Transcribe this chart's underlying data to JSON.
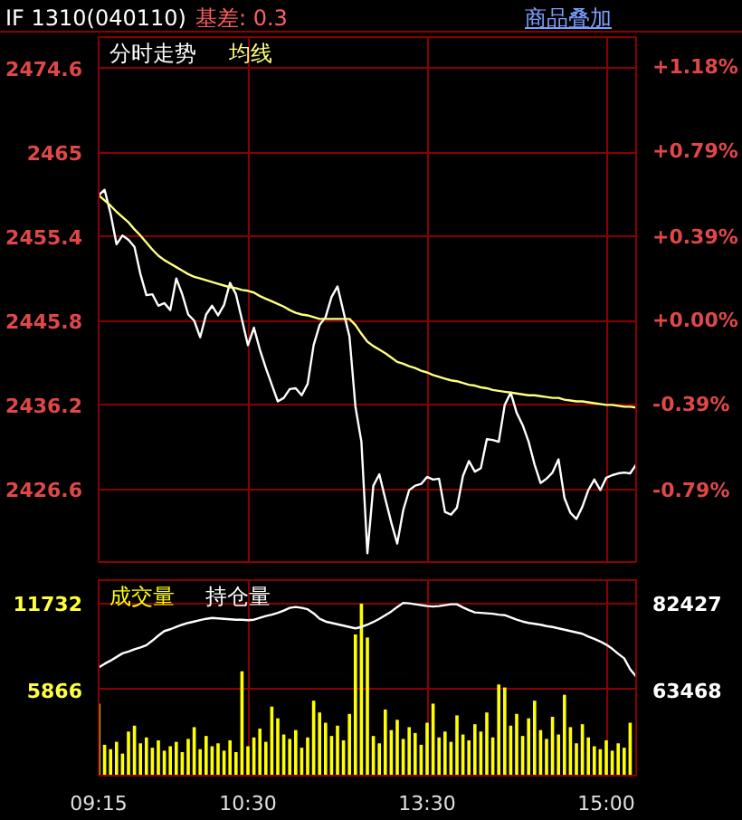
{
  "chart_data": [
    {
      "type": "line",
      "title": "IF 1310(040110)",
      "annotations": [
        "基差: 0.3",
        "商品叠加"
      ],
      "categories": [
        null,
        null,
        null,
        null,
        null,
        null,
        null,
        null,
        null,
        null,
        null,
        null,
        null,
        null,
        null,
        null,
        null,
        null,
        null,
        null,
        null,
        null,
        null,
        null,
        null,
        null,
        null,
        null,
        null,
        null,
        null,
        null,
        null,
        null,
        null,
        null,
        null,
        null,
        null,
        null,
        null,
        null,
        null,
        null,
        null,
        null,
        null,
        null,
        null,
        null,
        null,
        null,
        null,
        null,
        null,
        null,
        null,
        null,
        null,
        null,
        null,
        null,
        null,
        null,
        null,
        null,
        null,
        null,
        null,
        null,
        null,
        null,
        null,
        null,
        null,
        null,
        null,
        null,
        null,
        null,
        null,
        null,
        null,
        null,
        null,
        null,
        null,
        null,
        null,
        null,
        null
      ],
      "series": [
        {
          "name": "分时走势",
          "color": "#ffffff",
          "values": [
            2460.1,
            2460.7,
            2458.0,
            2454.5,
            2455.5,
            2455.0,
            2454.2,
            2451.1,
            2448.7,
            2448.8,
            2447.5,
            2447.8,
            2447.0,
            2450.6,
            2448.8,
            2446.5,
            2445.8,
            2443.9,
            2446.5,
            2447.5,
            2446.4,
            2447.6,
            2450.1,
            2448.8,
            2445.9,
            2443.0,
            2445.0,
            2442.5,
            2440.4,
            2438.5,
            2436.6,
            2437.0,
            2438.0,
            2438.1,
            2437.3,
            2438.6,
            2443.0,
            2445.3,
            2446.2,
            2448.5,
            2449.7,
            2446.8,
            2444.0,
            2436.0,
            2432.0,
            2419.3,
            2427.0,
            2428.3,
            2425.5,
            2422.8,
            2420.4,
            2424.2,
            2426.5,
            2427.0,
            2427.2,
            2428.0,
            2427.7,
            2427.8,
            2424.0,
            2423.7,
            2424.5,
            2428.1,
            2429.8,
            2428.6,
            2429.0,
            2432.3,
            2432.2,
            2432.0,
            2436.2,
            2437.6,
            2435.3,
            2433.9,
            2432.0,
            2429.4,
            2427.3,
            2427.8,
            2428.5,
            2430.0,
            2425.6,
            2423.9,
            2423.2,
            2424.6,
            2426.5,
            2427.7,
            2426.5,
            2427.9,
            2428.2,
            2428.4,
            2428.5,
            2428.4,
            2429.4
          ]
        },
        {
          "name": "均线",
          "color": "#ffff80",
          "values": [
            2460.1,
            2459.5,
            2458.9,
            2458.2,
            2457.6,
            2457.0,
            2456.2,
            2455.5,
            2454.7,
            2453.9,
            2453.2,
            2452.7,
            2452.3,
            2451.9,
            2451.5,
            2451.1,
            2450.8,
            2450.6,
            2450.4,
            2450.2,
            2450.0,
            2449.8,
            2449.6,
            2449.5,
            2449.3,
            2449.2,
            2449.0,
            2448.6,
            2448.3,
            2448.0,
            2447.7,
            2447.4,
            2447.0,
            2446.7,
            2446.5,
            2446.4,
            2446.2,
            2446.0,
            2446.0,
            2446.0,
            2446.0,
            2446.0,
            2446.0,
            2445.3,
            2444.3,
            2443.4,
            2442.9,
            2442.5,
            2442.1,
            2441.6,
            2441.1,
            2440.9,
            2440.6,
            2440.4,
            2440.1,
            2439.9,
            2439.6,
            2439.4,
            2439.2,
            2439.0,
            2438.9,
            2438.7,
            2438.5,
            2438.4,
            2438.2,
            2438.1,
            2437.9,
            2437.8,
            2437.7,
            2437.6,
            2437.5,
            2437.4,
            2437.3,
            2437.3,
            2437.2,
            2437.1,
            2437.0,
            2437.0,
            2436.8,
            2436.7,
            2436.6,
            2436.6,
            2436.5,
            2436.4,
            2436.3,
            2436.2,
            2436.2,
            2436.1,
            2436.0,
            2436.0,
            2435.9
          ]
        }
      ],
      "ylim": [
        2418.3,
        2478.1
      ],
      "yticks": [
        2426.6,
        2436.2,
        2445.8,
        2455.4,
        2465.0,
        2474.6
      ],
      "y2lim": [
        -1.124,
        1.321
      ],
      "y2ticks": [
        {
          "value": -0.79,
          "label": "-0.79%"
        },
        {
          "value": -0.39,
          "label": "-0.39%"
        },
        {
          "value": 0,
          "label": "+0.00%"
        },
        {
          "value": 0.39,
          "label": "+0.39%"
        },
        {
          "value": 0.79,
          "label": "+0.79%"
        },
        {
          "value": 1.18,
          "label": "+1.18%"
        }
      ],
      "grid": true,
      "legend": "top left",
      "tick_labels": "y"
    },
    {
      "type": "bar",
      "categories": [
        "09:15",
        null,
        null,
        null,
        null,
        null,
        null,
        null,
        null,
        null,
        null,
        null,
        null,
        null,
        null,
        null,
        null,
        null,
        null,
        null,
        null,
        null,
        null,
        null,
        null,
        "10:30",
        null,
        null,
        null,
        null,
        null,
        null,
        null,
        null,
        null,
        null,
        null,
        null,
        null,
        null,
        null,
        null,
        null,
        null,
        null,
        null,
        null,
        null,
        null,
        null,
        null,
        null,
        null,
        null,
        null,
        "13:30",
        null,
        null,
        null,
        null,
        null,
        null,
        null,
        null,
        null,
        null,
        null,
        null,
        null,
        null,
        null,
        null,
        null,
        null,
        null,
        null,
        null,
        null,
        null,
        null,
        null,
        null,
        null,
        null,
        null,
        "15:00",
        null,
        null,
        null,
        null,
        null
      ],
      "series": [
        {
          "name": "成交量",
          "color": "#ffff00",
          "values": [
            4900,
            2100,
            1800,
            2300,
            1500,
            3000,
            3400,
            2200,
            2600,
            1900,
            2400,
            1700,
            2000,
            2300,
            1600,
            2500,
            3300,
            1800,
            2700,
            2000,
            2200,
            1700,
            2400,
            1600,
            7100,
            2000,
            2600,
            3200,
            2300,
            4700,
            3900,
            2800,
            2500,
            3100,
            1900,
            2600,
            5100,
            4300,
            3600,
            2700,
            3400,
            2400,
            4200,
            9600,
            11700,
            9400,
            2700,
            2200,
            4500,
            3100,
            3800,
            2500,
            3300,
            2900,
            2100,
            3600,
            4900,
            2600,
            3000,
            2300,
            4100,
            2800,
            2400,
            3500,
            3000,
            4300,
            2600,
            6200,
            6000,
            3400,
            4200,
            2700,
            3900,
            5100,
            3100,
            2500,
            4000,
            2800,
            5500,
            3300,
            2200,
            3500,
            2600,
            2000,
            1800,
            2400,
            1700,
            2200,
            1900,
            3600,
            null
          ]
        },
        {
          "name": "持仓量",
          "type": "line",
          "axis": "y2",
          "color": "#ffffff",
          "values": [
            68300,
            69100,
            69800,
            70600,
            71400,
            71800,
            72300,
            72700,
            73200,
            74200,
            75300,
            76300,
            76700,
            77200,
            77700,
            78100,
            78400,
            78700,
            79000,
            79200,
            79100,
            79000,
            78900,
            78800,
            78800,
            78700,
            78800,
            79200,
            79600,
            79900,
            80300,
            80800,
            81400,
            81600,
            81400,
            81100,
            80200,
            79000,
            78400,
            78100,
            77800,
            77500,
            77200,
            76900,
            77200,
            77700,
            78300,
            79000,
            79800,
            80600,
            81600,
            82500,
            82400,
            82200,
            82000,
            81800,
            81700,
            81800,
            82000,
            82200,
            82200,
            81500,
            80900,
            80400,
            80300,
            80200,
            80100,
            79900,
            79800,
            79300,
            78800,
            78400,
            78100,
            77900,
            77700,
            77400,
            77200,
            76900,
            76600,
            76300,
            76000,
            75700,
            75100,
            74600,
            74000,
            73300,
            72400,
            71300,
            70300,
            67900,
            66300
          ]
        }
      ],
      "ylim": [
        0,
        13300
      ],
      "yticks": [
        5866,
        11732
      ],
      "y2lim": [
        44500,
        87500
      ],
      "y2ticks": [
        63468,
        82427
      ],
      "grid": true,
      "legend": "top left"
    }
  ]
}
